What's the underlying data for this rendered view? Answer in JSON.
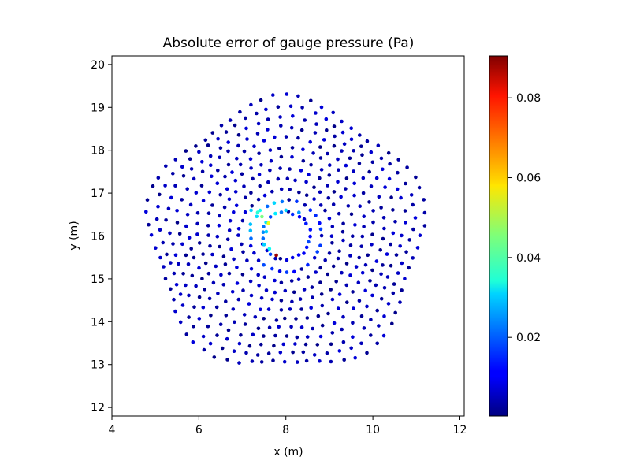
{
  "chart_data": {
    "type": "scatter",
    "title": "Absolute error of gauge pressure (Pa)",
    "xlabel": "x (m)",
    "ylabel": "y (m)",
    "xlim": [
      4.0,
      12.1
    ],
    "ylim": [
      11.8,
      20.2
    ],
    "xticks": [
      4,
      6,
      8,
      10,
      12
    ],
    "yticks": [
      12,
      13,
      14,
      15,
      16,
      17,
      18,
      19,
      20
    ],
    "colormap": "jet",
    "grid": false,
    "colorbar": {
      "min": 0.0003,
      "max": 0.0905,
      "ticks": [
        0.02,
        0.04,
        0.06,
        0.08
      ],
      "tick_labels": [
        "0.02",
        "0.04",
        "0.06",
        "0.08"
      ]
    },
    "domain": {
      "center": [
        8.0,
        16.0
      ],
      "inner_radius": 0.55,
      "outer_radius": 3.1,
      "rings": 12,
      "spokes": 72,
      "description_note": ""
    },
    "highlights": [
      {
        "x": 7.78,
        "y": 15.55,
        "value": 0.088
      },
      {
        "x": 7.6,
        "y": 16.3,
        "value": 0.055
      },
      {
        "x": 7.45,
        "y": 16.45,
        "value": 0.045
      },
      {
        "x": 7.35,
        "y": 16.55,
        "value": 0.038
      },
      {
        "x": 7.2,
        "y": 16.6,
        "value": 0.03
      },
      {
        "x": 7.62,
        "y": 15.7,
        "value": 0.035
      },
      {
        "x": 7.5,
        "y": 15.8,
        "value": 0.03
      },
      {
        "x": 8.0,
        "y": 16.6,
        "value": 0.03
      },
      {
        "x": 8.3,
        "y": 16.55,
        "value": 0.025
      },
      {
        "x": 7.55,
        "y": 16.1,
        "value": 0.03
      }
    ],
    "background_value_range": [
      0.001,
      0.012
    ]
  }
}
